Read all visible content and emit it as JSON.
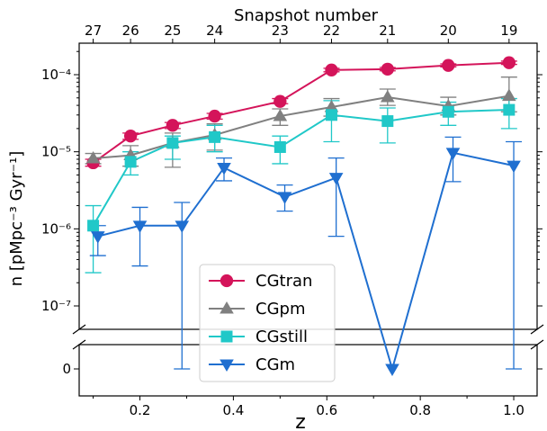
{
  "chart_data": {
    "type": "line",
    "xlabel": "z",
    "ylabel": "n [pMpc⁻³ Gyr⁻¹]",
    "top_xlabel": "Snapshot number",
    "xlim": [
      0.07,
      1.05
    ],
    "ylim": [
      1e-07,
      0.0002
    ],
    "yscale": "log with broken axis; zero shown on a separate lower panel",
    "x_ticks": [
      0.2,
      0.4,
      0.6,
      0.8,
      1.0
    ],
    "x_tick_labels": [
      "0.2",
      "0.4",
      "0.6",
      "0.8",
      "1.0"
    ],
    "y_ticks": [
      1e-07,
      1e-06,
      1e-05,
      0.0001
    ],
    "y_tick_labels": [
      "10⁻⁷",
      "10⁻⁶",
      "10⁻⁵",
      "10⁻⁴"
    ],
    "zero_tick_label": "0",
    "top_ticks": [
      {
        "z": 0.1,
        "label": "27"
      },
      {
        "z": 0.18,
        "label": "26"
      },
      {
        "z": 0.27,
        "label": "25"
      },
      {
        "z": 0.36,
        "label": "24"
      },
      {
        "z": 0.5,
        "label": "23"
      },
      {
        "z": 0.61,
        "label": "22"
      },
      {
        "z": 0.73,
        "label": "21"
      },
      {
        "z": 0.86,
        "label": "20"
      },
      {
        "z": 0.99,
        "label": "19"
      }
    ],
    "legend": {
      "position": "lower-center"
    },
    "grid": false,
    "series": [
      {
        "name": "CGtran",
        "color": "#d4145a",
        "marker": "circle",
        "x": [
          0.1,
          0.18,
          0.27,
          0.36,
          0.5,
          0.61,
          0.73,
          0.86,
          0.99
        ],
        "y": [
          7.2e-06,
          1.6e-05,
          2.2e-05,
          2.9e-05,
          4.5e-05,
          0.000115,
          0.000118,
          0.000132,
          0.000143
        ],
        "err_lo": [
          6.5e-06,
          1.45e-05,
          2e-05,
          2.65e-05,
          4.2e-05,
          0.000109,
          0.000112,
          0.000126,
          0.000136
        ],
        "err_hi": [
          8e-06,
          1.75e-05,
          2.4e-05,
          3.15e-05,
          4.9e-05,
          0.000121,
          0.000124,
          0.000138,
          0.00015
        ]
      },
      {
        "name": "CGpm",
        "color": "#808080",
        "marker": "triangle-up",
        "x": [
          0.1,
          0.18,
          0.27,
          0.36,
          0.5,
          0.61,
          0.73,
          0.86,
          0.99
        ],
        "y": [
          8.2e-06,
          9e-06,
          1.3e-05,
          1.65e-05,
          2.9e-05,
          3.8e-05,
          5.1e-05,
          3.9e-05,
          5.3e-05
        ],
        "err_lo": [
          7e-06,
          6.5e-06,
          6.3e-06,
          1.05e-05,
          2.2e-05,
          2.9e-05,
          4e-05,
          3e-05,
          3.3e-05
        ],
        "err_hi": [
          9.5e-06,
          1.2e-05,
          1.75e-05,
          2.3e-05,
          3.6e-05,
          4.9e-05,
          6.5e-05,
          5.1e-05,
          9.3e-05
        ]
      },
      {
        "name": "CGstill",
        "color": "#20c8c8",
        "marker": "square",
        "x": [
          0.1,
          0.18,
          0.27,
          0.36,
          0.5,
          0.61,
          0.73,
          0.86,
          0.99
        ],
        "y": [
          1.1e-06,
          7.4e-06,
          1.3e-05,
          1.55e-05,
          1.15e-05,
          3e-05,
          2.5e-05,
          3.3e-05,
          3.5e-05
        ],
        "err_lo": [
          2.7e-07,
          5e-06,
          8e-06,
          1e-05,
          7e-06,
          1.35e-05,
          1.3e-05,
          2.2e-05,
          2e-05
        ],
        "err_hi": [
          2e-06,
          1e-05,
          1.6e-05,
          2.2e-05,
          1.6e-05,
          4.6e-05,
          3.7e-05,
          4.4e-05,
          4.9e-05
        ]
      },
      {
        "name": "CGm",
        "color": "#1f6fd0",
        "marker": "triangle-down",
        "x": [
          0.11,
          0.2,
          0.29,
          0.38,
          0.51,
          0.62,
          0.74,
          0.87,
          1.0
        ],
        "y": [
          8e-07,
          1.1e-06,
          1.1e-06,
          6.2e-06,
          2.6e-06,
          4.6e-06,
          0,
          9.7e-06,
          6.6e-06
        ],
        "err_lo": [
          4.5e-07,
          3.3e-07,
          0,
          4.2e-06,
          1.7e-06,
          8e-07,
          0,
          4.1e-06,
          0
        ],
        "err_hi": [
          1.1e-06,
          1.9e-06,
          2.2e-06,
          8.3e-06,
          3.7e-06,
          8.3e-06,
          0,
          1.55e-05,
          1.35e-05
        ]
      }
    ]
  }
}
